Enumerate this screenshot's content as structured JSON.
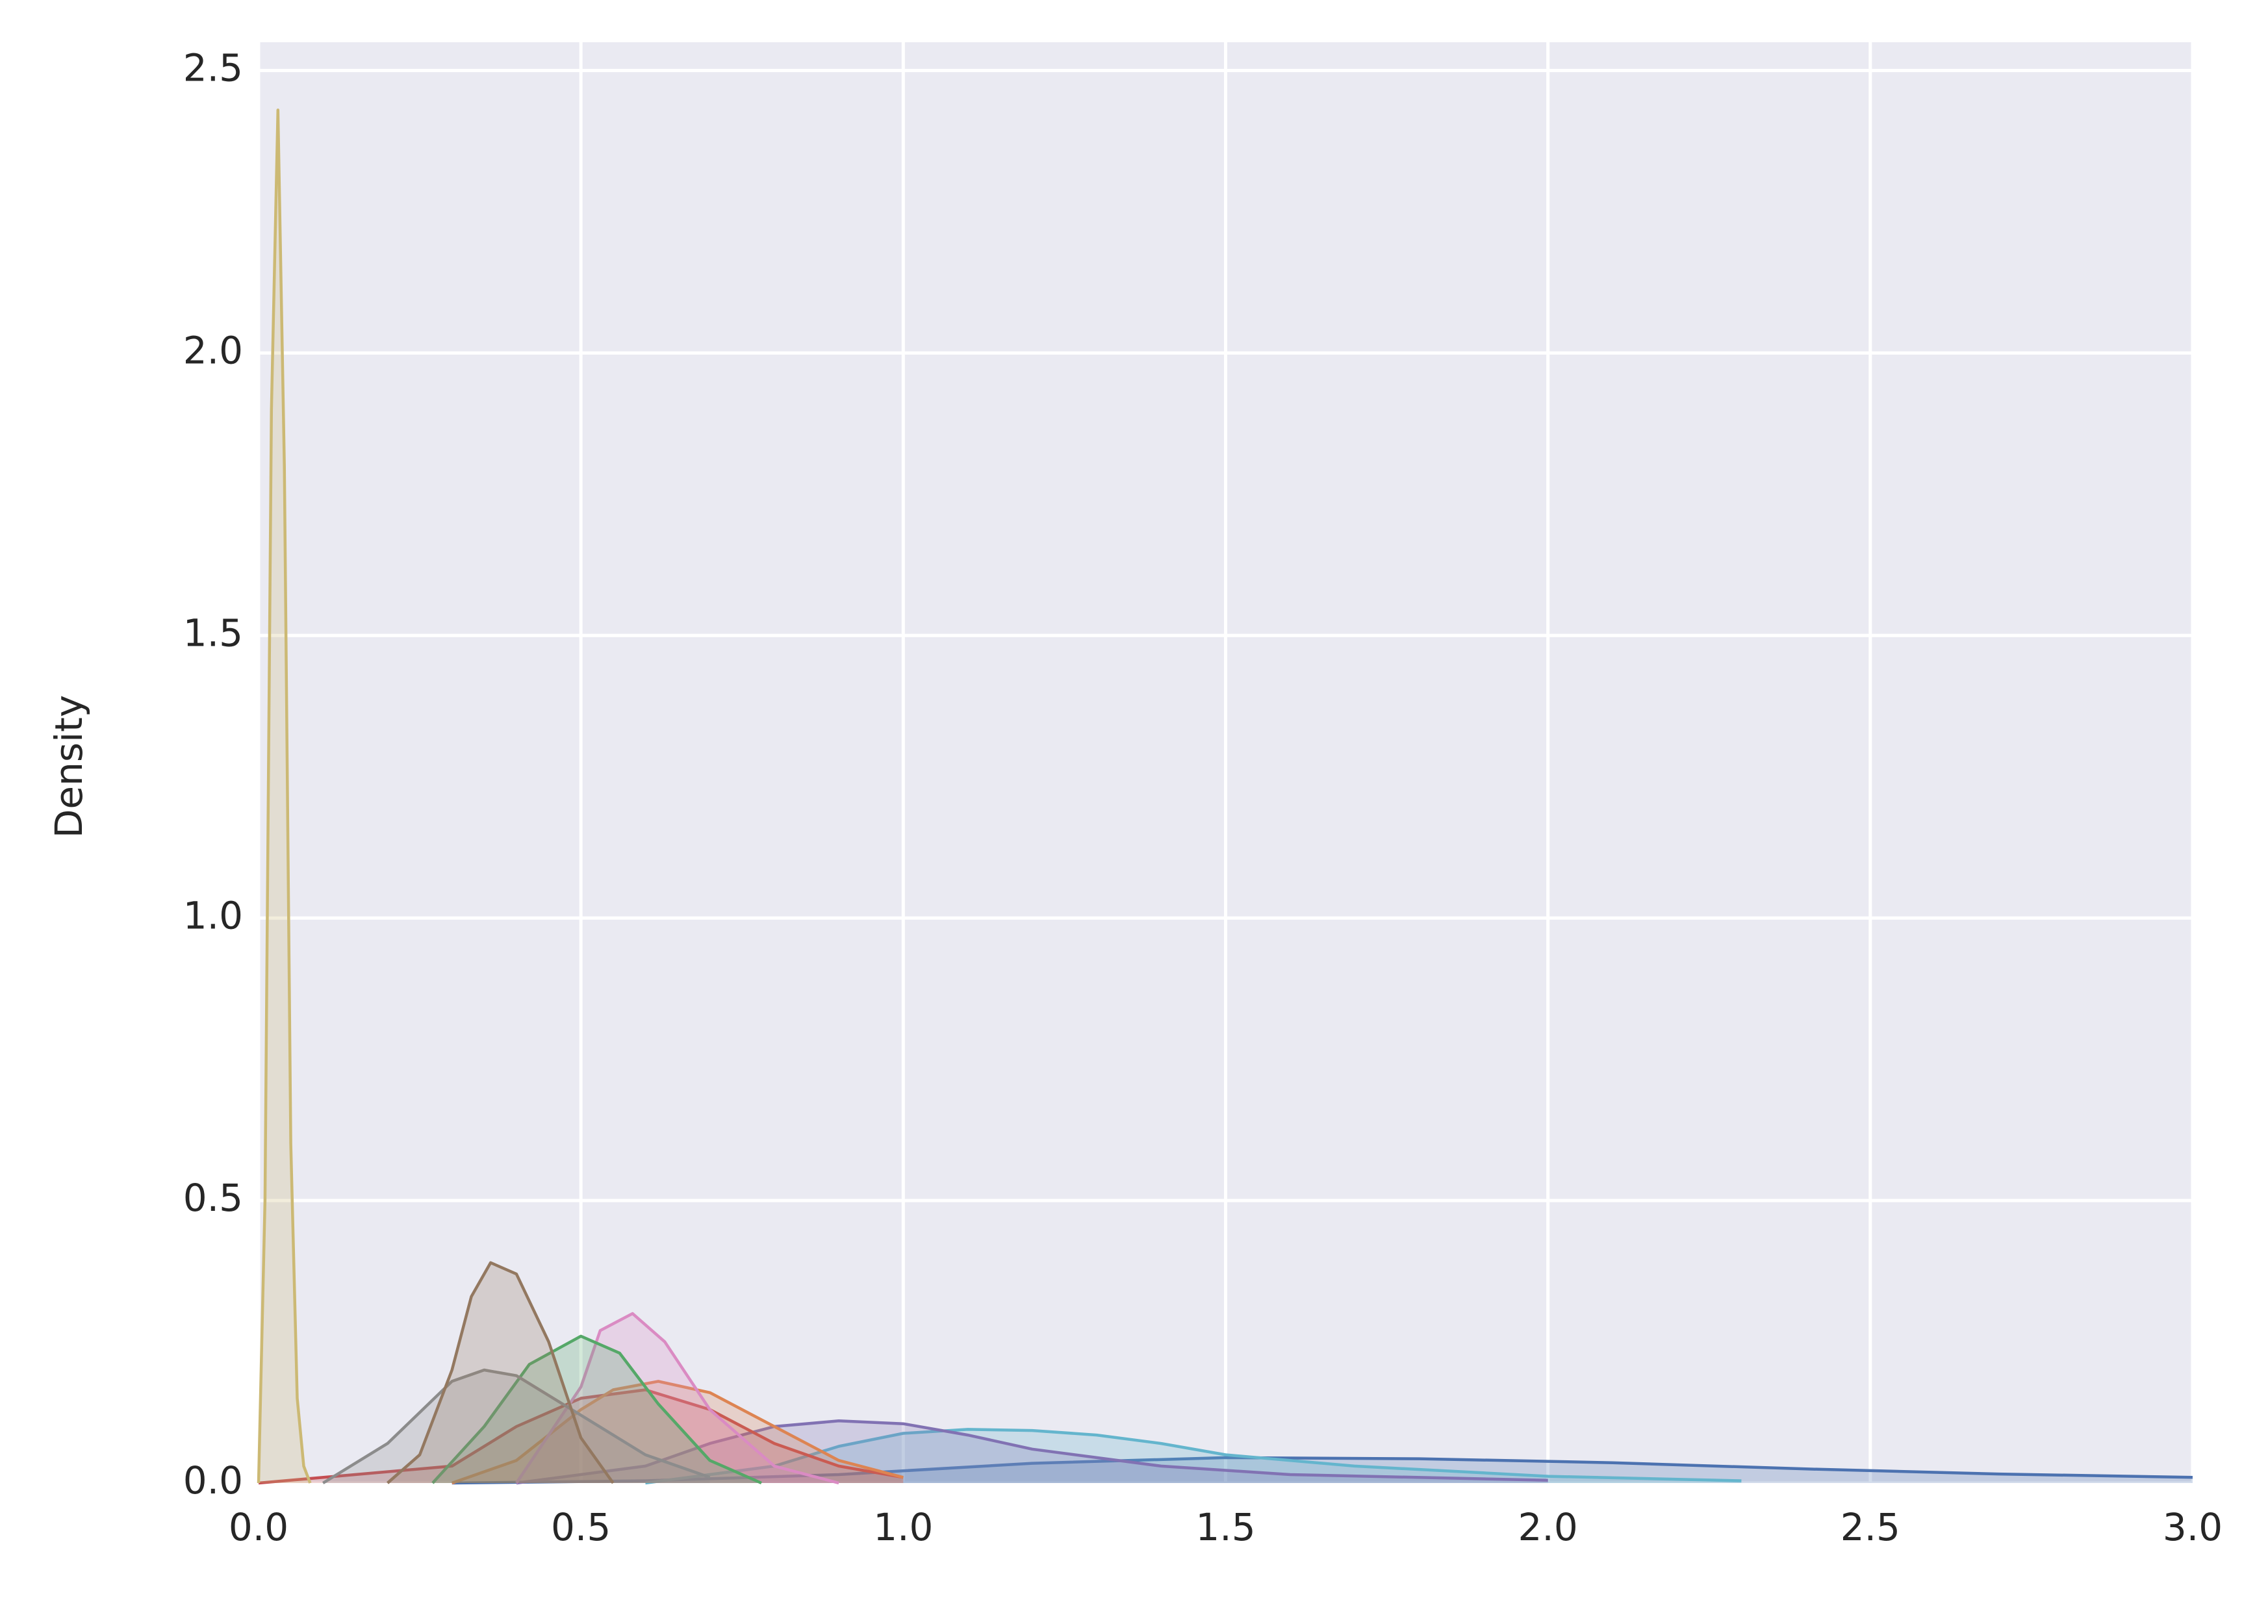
{
  "chart_data": {
    "type": "kde",
    "ylabel": "Density",
    "xlim": [
      0,
      3
    ],
    "ylim": [
      0,
      2.55
    ],
    "xticks": [
      {
        "value": 0,
        "label": "0.0"
      },
      0.5,
      {
        "value": 1,
        "label": "1.0"
      },
      1.5,
      {
        "value": 2,
        "label": "2.0"
      },
      2.5,
      {
        "value": 3,
        "label": "3.0"
      }
    ],
    "yticks": [
      {
        "value": 0,
        "label": "0.0"
      },
      0.5,
      {
        "value": 1,
        "label": "1.0"
      },
      1.5,
      {
        "value": 2,
        "label": "2.0"
      },
      2.5
    ],
    "grid": true,
    "series": [
      {
        "color": "#4c72b0",
        "x": [
          0.3,
          0.6,
          0.9,
          1.2,
          1.5,
          1.8,
          2.1,
          2.4,
          2.7,
          3.0
        ],
        "values": [
          0,
          0.004,
          0.015,
          0.035,
          0.045,
          0.043,
          0.036,
          0.025,
          0.016,
          0.01
        ]
      },
      {
        "color": "#64b5cd",
        "x": [
          0.6,
          0.8,
          0.9,
          1.0,
          1.1,
          1.2,
          1.3,
          1.4,
          1.5,
          1.7,
          2.0,
          2.3
        ],
        "values": [
          0,
          0.03,
          0.065,
          0.088,
          0.095,
          0.093,
          0.085,
          0.07,
          0.05,
          0.03,
          0.012,
          0.004
        ]
      },
      {
        "color": "#8172b3",
        "x": [
          0.4,
          0.6,
          0.7,
          0.8,
          0.9,
          1.0,
          1.1,
          1.2,
          1.4,
          1.6,
          2.0
        ],
        "values": [
          0,
          0.03,
          0.07,
          0.1,
          0.11,
          0.105,
          0.085,
          0.06,
          0.03,
          0.015,
          0.005
        ]
      },
      {
        "color": "#c44e52",
        "x": [
          0,
          0.3,
          0.4,
          0.5,
          0.6,
          0.7,
          0.8,
          0.9,
          1.0
        ],
        "values": [
          0,
          0.03,
          0.1,
          0.15,
          0.165,
          0.13,
          0.07,
          0.03,
          0.01
        ]
      },
      {
        "color": "#dd8452",
        "x": [
          0.3,
          0.4,
          0.5,
          0.55,
          0.62,
          0.7,
          0.8,
          0.9,
          1.0
        ],
        "values": [
          0,
          0.04,
          0.13,
          0.165,
          0.18,
          0.16,
          0.1,
          0.04,
          0.01
        ]
      },
      {
        "color": "#da8bc3",
        "x": [
          0.4,
          0.5,
          0.53,
          0.58,
          0.63,
          0.7,
          0.8,
          0.9
        ],
        "values": [
          0,
          0.17,
          0.27,
          0.3,
          0.25,
          0.13,
          0.03,
          0
        ]
      },
      {
        "color": "#55a868",
        "x": [
          0.27,
          0.35,
          0.42,
          0.5,
          0.56,
          0.62,
          0.7,
          0.78
        ],
        "values": [
          0,
          0.1,
          0.21,
          0.26,
          0.23,
          0.14,
          0.04,
          0
        ]
      },
      {
        "color": "#8c8c8c",
        "x": [
          0.1,
          0.2,
          0.3,
          0.35,
          0.4,
          0.5,
          0.6,
          0.7
        ],
        "values": [
          0,
          0.07,
          0.18,
          0.2,
          0.19,
          0.12,
          0.05,
          0.01
        ]
      },
      {
        "color": "#937860",
        "x": [
          0.2,
          0.25,
          0.3,
          0.33,
          0.36,
          0.4,
          0.45,
          0.5,
          0.55
        ],
        "values": [
          0,
          0.05,
          0.2,
          0.33,
          0.39,
          0.37,
          0.25,
          0.08,
          0
        ]
      },
      {
        "color": "#ccb974",
        "x": [
          0,
          0.01,
          0.02,
          0.03,
          0.04,
          0.05,
          0.06,
          0.07,
          0.08
        ],
        "values": [
          0,
          0.5,
          1.9,
          2.43,
          1.8,
          0.6,
          0.15,
          0.03,
          0
        ]
      }
    ]
  }
}
